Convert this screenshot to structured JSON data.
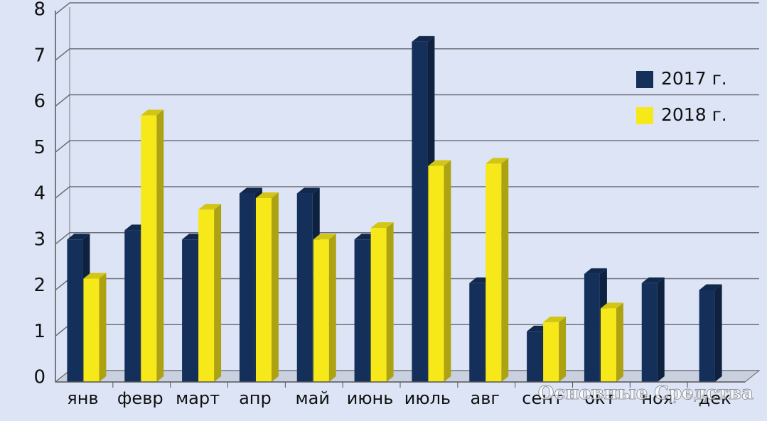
{
  "chart_data": {
    "type": "bar",
    "categories": [
      "янв",
      "февр",
      "март",
      "апр",
      "май",
      "июнь",
      "июль",
      "авг",
      "сент",
      "окт",
      "ноя",
      "дек"
    ],
    "series": [
      {
        "name": "2017 г.",
        "color": "#14305a",
        "values": [
          3.1,
          3.3,
          3.1,
          4.1,
          4.1,
          3.1,
          7.4,
          2.15,
          1.1,
          2.35,
          2.15,
          2.0
        ]
      },
      {
        "name": "2018 г.",
        "color": "#f7e81a",
        "values": [
          2.25,
          5.8,
          3.75,
          4.0,
          3.1,
          3.35,
          4.7,
          4.75,
          1.3,
          1.6,
          null,
          null
        ]
      }
    ],
    "ylim": [
      0,
      8
    ],
    "yticks": [
      0,
      1,
      2,
      3,
      4,
      5,
      6,
      7,
      8
    ],
    "grid": true,
    "legend": "upper right",
    "watermark": "Основные Средства"
  }
}
